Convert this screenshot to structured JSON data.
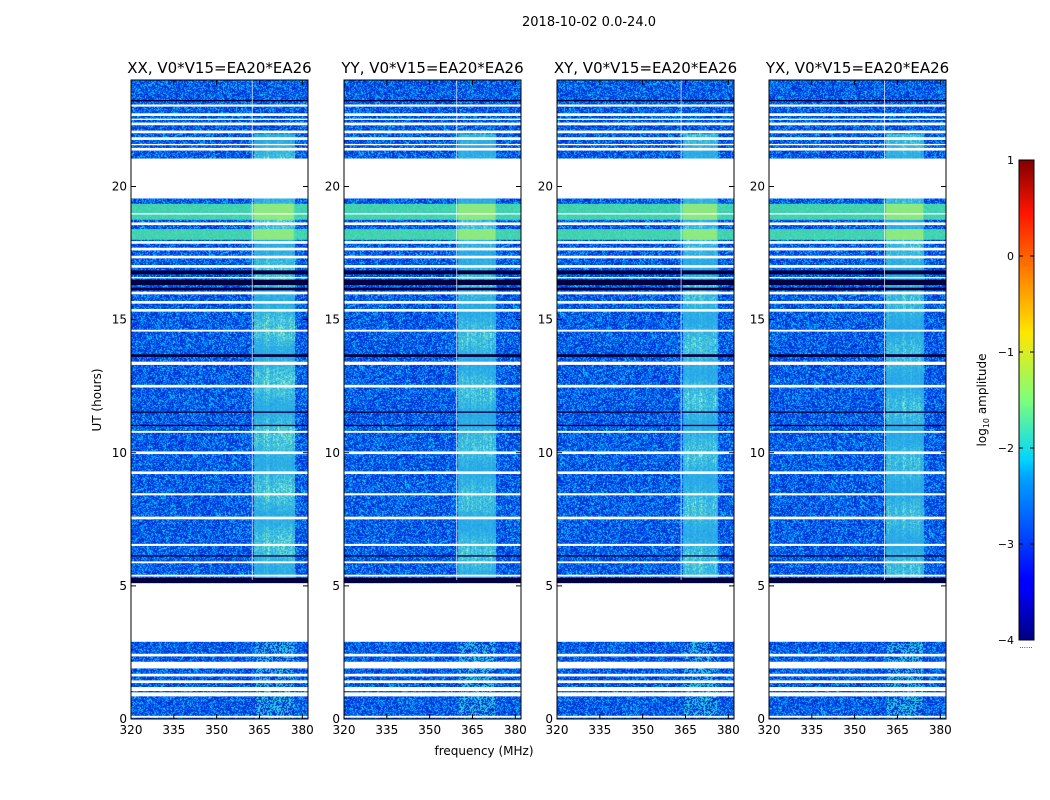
{
  "figure": {
    "suptitle": "2018-10-02 0.0-24.0"
  },
  "chart_data": {
    "type": "heatmap",
    "shared_xlabel": "frequency (MHz)",
    "shared_ylabel": "UT (hours)",
    "xlim": [
      320,
      382
    ],
    "ylim": [
      0,
      24
    ],
    "xticks": [
      320,
      335,
      350,
      365,
      380
    ],
    "yticks": [
      0,
      5,
      10,
      15,
      20
    ],
    "panels": [
      {
        "title": "XX, V0*V15=EA20*EA26",
        "rfi_band": [
          363,
          377
        ],
        "rfi_strength": 1.0
      },
      {
        "title": "YY, V0*V15=EA20*EA26",
        "rfi_band": [
          360,
          373
        ],
        "rfi_strength": 0.85
      },
      {
        "title": "XY, V0*V15=EA20*EA26",
        "rfi_band": [
          364,
          376
        ],
        "rfi_strength": 0.9
      },
      {
        "title": "YX, V0*V15=EA20*EA26",
        "rfi_band": [
          361,
          374
        ],
        "rfi_strength": 0.8
      }
    ],
    "flagged_hours": [
      [
        0.05,
        0.12
      ],
      [
        0.85,
        1.0
      ],
      [
        1.05,
        1.2
      ],
      [
        1.35,
        1.45
      ],
      [
        1.6,
        1.7
      ],
      [
        1.9,
        2.15
      ],
      [
        2.35,
        2.45
      ],
      [
        2.9,
        5.1
      ],
      [
        5.35,
        5.42
      ],
      [
        5.85,
        5.92
      ],
      [
        6.5,
        6.58
      ],
      [
        7.5,
        7.6
      ],
      [
        8.4,
        8.48
      ],
      [
        9.2,
        9.3
      ],
      [
        9.95,
        10.05
      ],
      [
        10.75,
        10.82
      ],
      [
        12.45,
        12.55
      ],
      [
        13.3,
        13.42
      ],
      [
        14.55,
        14.62
      ],
      [
        15.3,
        15.4
      ],
      [
        15.6,
        15.7
      ],
      [
        15.95,
        16.05
      ],
      [
        16.55,
        16.6
      ],
      [
        16.95,
        17.05
      ],
      [
        17.3,
        17.4
      ],
      [
        17.6,
        17.7
      ],
      [
        17.85,
        17.95
      ],
      [
        18.55,
        18.65
      ],
      [
        18.95,
        19.0
      ],
      [
        19.55,
        21.05
      ],
      [
        21.35,
        21.45
      ],
      [
        21.55,
        21.6
      ],
      [
        21.75,
        21.85
      ],
      [
        22.0,
        22.1
      ],
      [
        22.3,
        22.4
      ],
      [
        22.5,
        22.55
      ],
      [
        22.65,
        22.75
      ],
      [
        23.0,
        23.08
      ]
    ],
    "dark_rows_hours": [
      [
        5.1,
        5.3
      ],
      [
        6.1,
        6.15
      ],
      [
        11.0,
        11.05
      ],
      [
        11.5,
        11.55
      ],
      [
        13.6,
        13.7
      ],
      [
        16.1,
        16.2
      ],
      [
        16.3,
        16.5
      ],
      [
        16.7,
        16.85
      ],
      [
        23.2,
        23.25
      ]
    ],
    "bright_bands_hours": [
      [
        18.0,
        18.4
      ],
      [
        18.75,
        19.35
      ]
    ],
    "colorbar": {
      "label_prefix": "log",
      "label_sub": "10",
      "label_suffix": " amplitude",
      "min": -4,
      "max": 1,
      "ticks": [
        -4,
        -3,
        -2,
        -1,
        0,
        1
      ],
      "colormap": "jet",
      "underflow_label": "......"
    }
  }
}
